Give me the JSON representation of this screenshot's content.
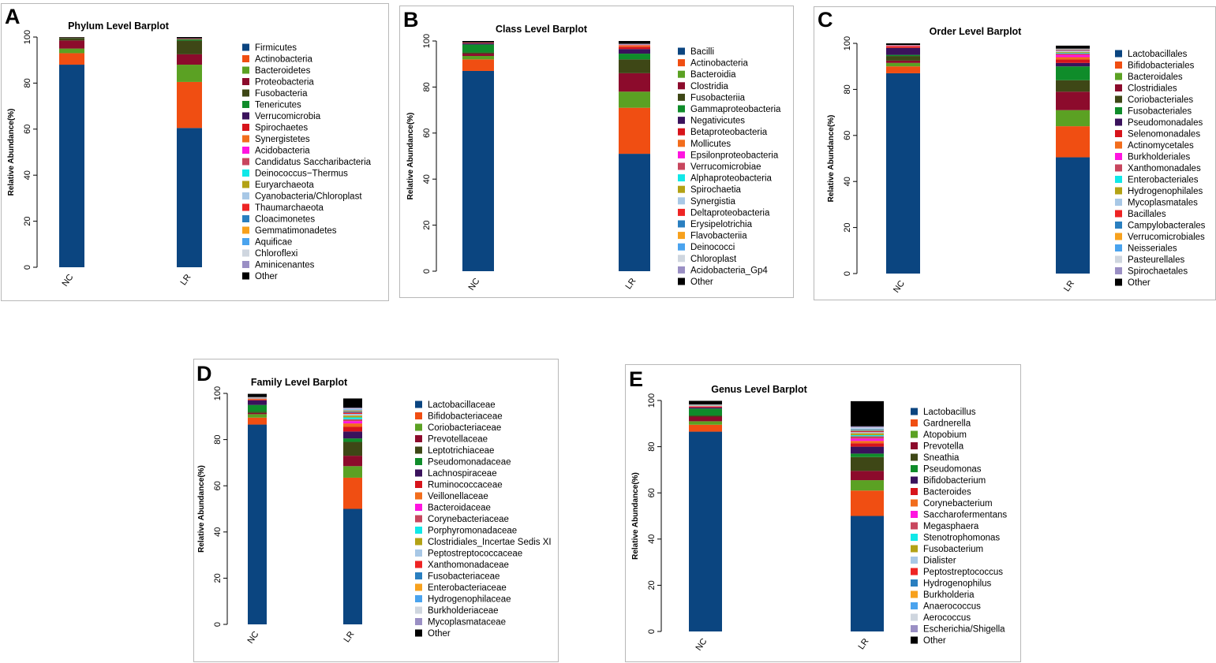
{
  "figure": {
    "panels": [
      {
        "letter": "A",
        "title": "Phylum Level Barplot",
        "ylabel": "Relative Abundance(%)",
        "yticks": [
          "0",
          "20",
          "40",
          "60",
          "80",
          "100"
        ],
        "categories": [
          "NC",
          "LR"
        ],
        "legend": [
          "Firmicutes",
          "Actinobacteria",
          "Bacteroidetes",
          "Proteobacteria",
          "Fusobacteria",
          "Tenericutes",
          "Verrucomicrobia",
          "Spirochaetes",
          "Synergistetes",
          "Acidobacteria",
          "Candidatus Saccharibacteria",
          "Deinococcus−Thermus",
          "Euryarchaeota",
          "Cyanobacteria/Chloroplast",
          "Thaumarchaeota",
          "Cloacimonetes",
          "Gemmatimonadetes",
          "Aquificae",
          "Chloroflexi",
          "Aminicenantes",
          "Other"
        ]
      },
      {
        "letter": "B",
        "title": "Class Level Barplot",
        "ylabel": "Relative Abundance(%)",
        "yticks": [
          "0",
          "20",
          "40",
          "60",
          "80",
          "100"
        ],
        "categories": [
          "NC",
          "LR"
        ],
        "legend": [
          "Bacilli",
          "Actinobacteria",
          "Bacteroidia",
          "Clostridia",
          "Fusobacteriia",
          "Gammaproteobacteria",
          "Negativicutes",
          "Betaproteobacteria",
          "Mollicutes",
          "Epsilonproteobacteria",
          "Verrucomicrobiae",
          "Alphaproteobacteria",
          "Spirochaetia",
          "Synergistia",
          "Deltaproteobacteria",
          "Erysipelotrichia",
          "Flavobacteriia",
          "Deinococci",
          "Chloroplast",
          "Acidobacteria_Gp4",
          "Other"
        ]
      },
      {
        "letter": "C",
        "title": "Order Level Barplot",
        "ylabel": "Relative Abundance(%)",
        "yticks": [
          "0",
          "20",
          "40",
          "60",
          "80",
          "100"
        ],
        "categories": [
          "NC",
          "LR"
        ],
        "legend": [
          "Lactobacillales",
          "Bifidobacteriales",
          "Bacteroidales",
          "Clostridiales",
          "Coriobacteriales",
          "Fusobacteriales",
          "Pseudomonadales",
          "Selenomonadales",
          "Actinomycetales",
          "Burkholderiales",
          "Xanthomonadales",
          "Enterobacteriales",
          "Hydrogenophilales",
          "Mycoplasmatales",
          "Bacillales",
          "Campylobacterales",
          "Verrucomicrobiales",
          "Neisseriales",
          "Pasteurellales",
          "Spirochaetales",
          "Other"
        ]
      },
      {
        "letter": "D",
        "title": "Family Level Barplot",
        "ylabel": "Relative Abundance(%)",
        "yticks": [
          "0",
          "20",
          "40",
          "60",
          "80",
          "100"
        ],
        "categories": [
          "NC",
          "LR"
        ],
        "legend": [
          "Lactobacillaceae",
          "Bifidobacteriaceae",
          "Coriobacteriaceae",
          "Prevotellaceae",
          "Leptotrichiaceae",
          "Pseudomonadaceae",
          "Lachnospiraceae",
          "Ruminococcaceae",
          "Veillonellaceae",
          "Bacteroidaceae",
          "Corynebacteriaceae",
          "Porphyromonadaceae",
          "Clostridiales_Incertae Sedis XI",
          "Peptostreptococcaceae",
          "Xanthomonadaceae",
          "Fusobacteriaceae",
          "Enterobacteriaceae",
          "Hydrogenophilaceae",
          "Burkholderiaceae",
          "Mycoplasmataceae",
          "Other"
        ]
      },
      {
        "letter": "E",
        "title": "Genus Level Barplot",
        "ylabel": "Relative Abundance(%)",
        "yticks": [
          "0",
          "20",
          "40",
          "60",
          "80",
          "100"
        ],
        "categories": [
          "NC",
          "LR"
        ],
        "legend": [
          "Lactobacillus",
          "Gardnerella",
          "Atopobium",
          "Prevotella",
          "Sneathia",
          "Pseudomonas",
          "Bifidobacterium",
          "Bacteroides",
          "Corynebacterium",
          "Saccharofermentans",
          "Megasphaera",
          "Stenotrophomonas",
          "Fusobacterium",
          "Dialister",
          "Peptostreptococcus",
          "Hydrogenophilus",
          "Burkholderia",
          "Anaerococcus",
          "Aerococcus",
          "Escherichia/Shigella",
          "Other"
        ]
      }
    ]
  },
  "palette": [
    "#0b4580",
    "#f04e12",
    "#5ba123",
    "#8c0b2c",
    "#3e4716",
    "#0f8c2a",
    "#3a125c",
    "#d7141b",
    "#f26d1c",
    "#ff14e0",
    "#c8465e",
    "#10e8e8",
    "#b3a215",
    "#a8c8e6",
    "#ee2424",
    "#2a7fc0",
    "#f7a11d",
    "#4aa3ee",
    "#cfd6df",
    "#9a8fc4",
    "#000000"
  ],
  "chart_data": [
    {
      "type": "bar",
      "stacked": true,
      "title": "Phylum Level Barplot",
      "ylabel": "Relative Abundance(%)",
      "ylim": [
        0,
        100
      ],
      "categories": [
        "NC",
        "LR"
      ],
      "series": [
        {
          "name": "Firmicutes",
          "values": [
            88.0,
            60.5
          ]
        },
        {
          "name": "Actinobacteria",
          "values": [
            5.0,
            20.0
          ]
        },
        {
          "name": "Bacteroidetes",
          "values": [
            2.0,
            7.5
          ]
        },
        {
          "name": "Proteobacteria",
          "values": [
            3.5,
            4.5
          ]
        },
        {
          "name": "Fusobacteria",
          "values": [
            1.0,
            6.0
          ]
        },
        {
          "name": "Tenericutes",
          "values": [
            0.1,
            0.5
          ]
        },
        {
          "name": "Verrucomicrobia",
          "values": [
            0.05,
            0.1
          ]
        },
        {
          "name": "Spirochaetes",
          "values": [
            0.05,
            0.1
          ]
        },
        {
          "name": "Synergistetes",
          "values": [
            0.05,
            0.1
          ]
        },
        {
          "name": "Acidobacteria",
          "values": [
            0,
            0.05
          ]
        },
        {
          "name": "Candidatus Saccharibacteria",
          "values": [
            0,
            0.05
          ]
        },
        {
          "name": "Deinococcus−Thermus",
          "values": [
            0,
            0
          ]
        },
        {
          "name": "Euryarchaeota",
          "values": [
            0,
            0
          ]
        },
        {
          "name": "Cyanobacteria/Chloroplast",
          "values": [
            0,
            0
          ]
        },
        {
          "name": "Thaumarchaeota",
          "values": [
            0,
            0
          ]
        },
        {
          "name": "Cloacimonetes",
          "values": [
            0,
            0
          ]
        },
        {
          "name": "Gemmatimonadetes",
          "values": [
            0,
            0
          ]
        },
        {
          "name": "Aquificae",
          "values": [
            0,
            0
          ]
        },
        {
          "name": "Chloroflexi",
          "values": [
            0,
            0
          ]
        },
        {
          "name": "Aminicenantes",
          "values": [
            0,
            0
          ]
        },
        {
          "name": "Other",
          "values": [
            0.25,
            0.6
          ]
        }
      ]
    },
    {
      "type": "bar",
      "stacked": true,
      "title": "Class Level Barplot",
      "ylabel": "Relative Abundance(%)",
      "ylim": [
        0,
        100
      ],
      "categories": [
        "NC",
        "LR"
      ],
      "series": [
        {
          "name": "Bacilli",
          "values": [
            87.0,
            51.0
          ]
        },
        {
          "name": "Actinobacteria",
          "values": [
            5.0,
            20.0
          ]
        },
        {
          "name": "Bacteroidia",
          "values": [
            1.5,
            7.0
          ]
        },
        {
          "name": "Clostridia",
          "values": [
            1.0,
            8.0
          ]
        },
        {
          "name": "Fusobacteriia",
          "values": [
            0.5,
            6.0
          ]
        },
        {
          "name": "Gammaproteobacteria",
          "values": [
            3.5,
            2.5
          ]
        },
        {
          "name": "Negativicutes",
          "values": [
            0.5,
            2.0
          ]
        },
        {
          "name": "Betaproteobacteria",
          "values": [
            0.2,
            1.0
          ]
        },
        {
          "name": "Mollicutes",
          "values": [
            0.1,
            0.7
          ]
        },
        {
          "name": "Epsilonproteobacteria",
          "values": [
            0.05,
            0.2
          ]
        },
        {
          "name": "Verrucomicrobiae",
          "values": [
            0,
            0.1
          ]
        },
        {
          "name": "Alphaproteobacteria",
          "values": [
            0,
            0.1
          ]
        },
        {
          "name": "Spirochaetia",
          "values": [
            0,
            0.05
          ]
        },
        {
          "name": "Synergistia",
          "values": [
            0,
            0.05
          ]
        },
        {
          "name": "Deltaproteobacteria",
          "values": [
            0,
            0.05
          ]
        },
        {
          "name": "Erysipelotrichia",
          "values": [
            0,
            0.05
          ]
        },
        {
          "name": "Flavobacteriia",
          "values": [
            0,
            0
          ]
        },
        {
          "name": "Deinococci",
          "values": [
            0,
            0
          ]
        },
        {
          "name": "Chloroplast",
          "values": [
            0,
            0
          ]
        },
        {
          "name": "Acidobacteria_Gp4",
          "values": [
            0,
            0
          ]
        },
        {
          "name": "Other",
          "values": [
            0.65,
            1.2
          ]
        }
      ]
    },
    {
      "type": "bar",
      "stacked": true,
      "title": "Order Level Barplot",
      "ylabel": "Relative Abundance(%)",
      "ylim": [
        0,
        100
      ],
      "categories": [
        "NC",
        "LR"
      ],
      "series": [
        {
          "name": "Lactobacillales",
          "values": [
            87.0,
            50.5
          ]
        },
        {
          "name": "Bifidobacteriales",
          "values": [
            3.0,
            13.5
          ]
        },
        {
          "name": "Bacteroidales",
          "values": [
            1.5,
            7.0
          ]
        },
        {
          "name": "Clostridiales",
          "values": [
            1.0,
            8.0
          ]
        },
        {
          "name": "Coriobacteriales",
          "values": [
            2.0,
            5.0
          ]
        },
        {
          "name": "Fusobacteriales",
          "values": [
            0.5,
            6.0
          ]
        },
        {
          "name": "Pseudomonadales",
          "values": [
            3.0,
            1.5
          ]
        },
        {
          "name": "Selenomonadales",
          "values": [
            0.5,
            1.5
          ]
        },
        {
          "name": "Actinomycetales",
          "values": [
            0.3,
            1.0
          ]
        },
        {
          "name": "Burkholderiales",
          "values": [
            0.2,
            1.0
          ]
        },
        {
          "name": "Xanthomonadales",
          "values": [
            0.1,
            0.6
          ]
        },
        {
          "name": "Enterobacteriales",
          "values": [
            0.05,
            0.3
          ]
        },
        {
          "name": "Hydrogenophilales",
          "values": [
            0.05,
            0.4
          ]
        },
        {
          "name": "Mycoplasmatales",
          "values": [
            0.05,
            0.5
          ]
        },
        {
          "name": "Bacillales",
          "values": [
            0.05,
            0.3
          ]
        },
        {
          "name": "Campylobacterales",
          "values": [
            0,
            0.2
          ]
        },
        {
          "name": "Verrucomicrobiales",
          "values": [
            0,
            0.1
          ]
        },
        {
          "name": "Neisseriales",
          "values": [
            0,
            0.1
          ]
        },
        {
          "name": "Pasteurellales",
          "values": [
            0,
            0.1
          ]
        },
        {
          "name": "Spirochaetales",
          "values": [
            0,
            0.1
          ]
        },
        {
          "name": "Other",
          "values": [
            0.7,
            1.3
          ]
        }
      ]
    },
    {
      "type": "bar",
      "stacked": true,
      "title": "Family Level Barplot",
      "ylabel": "Relative Abundance(%)",
      "ylim": [
        0,
        100
      ],
      "categories": [
        "NC",
        "LR"
      ],
      "series": [
        {
          "name": "Lactobacillaceae",
          "values": [
            86.5,
            50.0
          ]
        },
        {
          "name": "Bifidobacteriaceae",
          "values": [
            3.0,
            13.5
          ]
        },
        {
          "name": "Coriobacteriaceae",
          "values": [
            1.5,
            5.0
          ]
        },
        {
          "name": "Prevotellaceae",
          "values": [
            0.5,
            4.5
          ]
        },
        {
          "name": "Leptotrichiaceae",
          "values": [
            0.5,
            6.0
          ]
        },
        {
          "name": "Pseudomonadaceae",
          "values": [
            3.0,
            1.5
          ]
        },
        {
          "name": "Lachnospiraceae",
          "values": [
            2.0,
            3.0
          ]
        },
        {
          "name": "Ruminococcaceae",
          "values": [
            0.3,
            2.0
          ]
        },
        {
          "name": "Veillonellaceae",
          "values": [
            0.3,
            1.5
          ]
        },
        {
          "name": "Bacteroidaceae",
          "values": [
            0.1,
            1.0
          ]
        },
        {
          "name": "Corynebacteriaceae",
          "values": [
            0.1,
            0.8
          ]
        },
        {
          "name": "Porphyromonadaceae",
          "values": [
            0.1,
            0.8
          ]
        },
        {
          "name": "Clostridiales_Incertae Sedis XI",
          "values": [
            0.1,
            0.8
          ]
        },
        {
          "name": "Peptostreptococcaceae",
          "values": [
            0.1,
            0.7
          ]
        },
        {
          "name": "Xanthomonadaceae",
          "values": [
            0.05,
            0.6
          ]
        },
        {
          "name": "Fusobacteriaceae",
          "values": [
            0.05,
            0.5
          ]
        },
        {
          "name": "Enterobacteriaceae",
          "values": [
            0.05,
            0.4
          ]
        },
        {
          "name": "Hydrogenophilaceae",
          "values": [
            0.05,
            0.4
          ]
        },
        {
          "name": "Burkholderiaceae",
          "values": [
            0.05,
            0.4
          ]
        },
        {
          "name": "Mycoplasmataceae",
          "values": [
            0.05,
            0.4
          ]
        },
        {
          "name": "Other",
          "values": [
            1.4,
            4.0
          ]
        }
      ]
    },
    {
      "type": "bar",
      "stacked": true,
      "title": "Genus Level Barplot",
      "ylabel": "Relative Abundance(%)",
      "ylim": [
        0,
        100
      ],
      "categories": [
        "NC",
        "LR"
      ],
      "series": [
        {
          "name": "Lactobacillus",
          "values": [
            86.5,
            50.0
          ]
        },
        {
          "name": "Gardnerella",
          "values": [
            3.0,
            11.0
          ]
        },
        {
          "name": "Atopobium",
          "values": [
            1.5,
            4.5
          ]
        },
        {
          "name": "Prevotella",
          "values": [
            2.0,
            4.0
          ]
        },
        {
          "name": "Sneathia",
          "values": [
            0.5,
            6.0
          ]
        },
        {
          "name": "Pseudomonas",
          "values": [
            3.0,
            1.5
          ]
        },
        {
          "name": "Bifidobacterium",
          "values": [
            0.5,
            3.0
          ]
        },
        {
          "name": "Bacteroides",
          "values": [
            0.3,
            1.5
          ]
        },
        {
          "name": "Corynebacterium",
          "values": [
            0.2,
            1.0
          ]
        },
        {
          "name": "Saccharofermentans",
          "values": [
            0.1,
            1.0
          ]
        },
        {
          "name": "Megasphaera",
          "values": [
            0.1,
            1.0
          ]
        },
        {
          "name": "Stenotrophomonas",
          "values": [
            0.1,
            0.5
          ]
        },
        {
          "name": "Fusobacterium",
          "values": [
            0.1,
            0.8
          ]
        },
        {
          "name": "Dialister",
          "values": [
            0.1,
            0.5
          ]
        },
        {
          "name": "Peptostreptococcus",
          "values": [
            0.05,
            0.4
          ]
        },
        {
          "name": "Hydrogenophilus",
          "values": [
            0.05,
            0.3
          ]
        },
        {
          "name": "Burkholderia",
          "values": [
            0.05,
            0.3
          ]
        },
        {
          "name": "Anaerococcus",
          "values": [
            0.05,
            0.5
          ]
        },
        {
          "name": "Aerococcus",
          "values": [
            0.05,
            0.5
          ]
        },
        {
          "name": "Escherichia/Shigella",
          "values": [
            0.05,
            0.5
          ]
        },
        {
          "name": "Other",
          "values": [
            1.55,
            10.9
          ]
        }
      ]
    }
  ]
}
